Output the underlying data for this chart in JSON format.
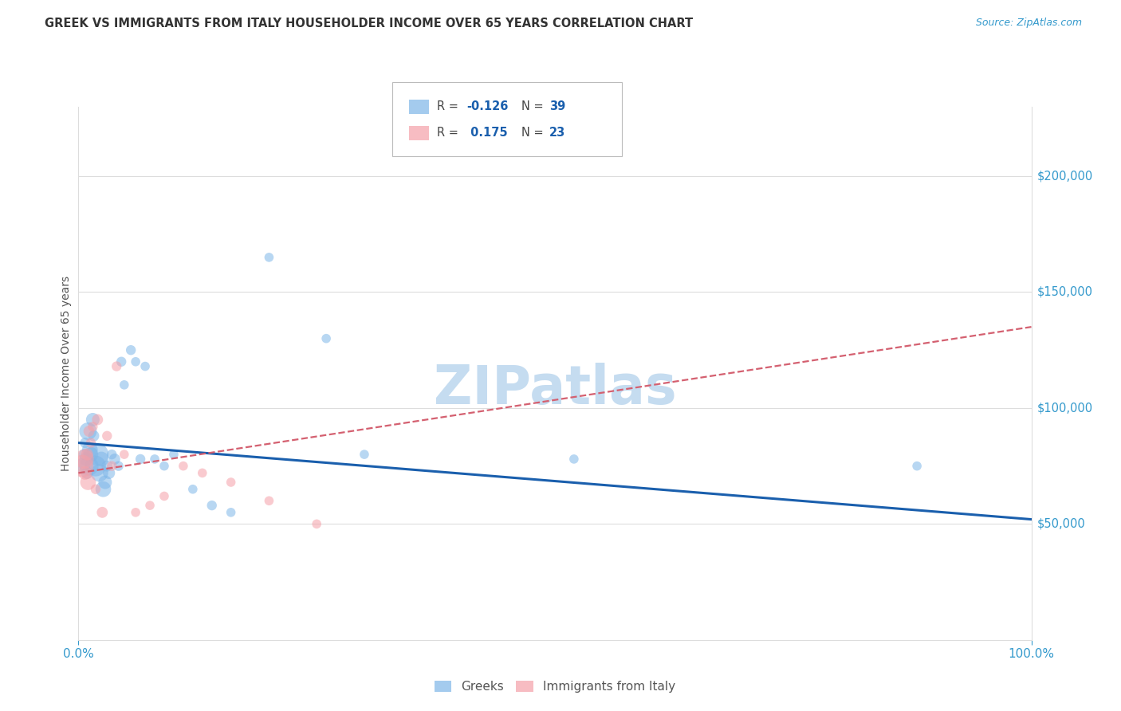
{
  "title": "GREEK VS IMMIGRANTS FROM ITALY HOUSEHOLDER INCOME OVER 65 YEARS CORRELATION CHART",
  "source": "Source: ZipAtlas.com",
  "ylabel": "Householder Income Over 65 years",
  "x_tick_labels": [
    "0.0%",
    "100.0%"
  ],
  "y_tick_values": [
    50000,
    100000,
    150000,
    200000
  ],
  "xlim": [
    0,
    1.0
  ],
  "ylim": [
    0,
    230000
  ],
  "legend_labels": [
    "Greeks",
    "Immigrants from Italy"
  ],
  "watermark": "ZIPatlas",
  "blue_color": "#7EB6E8",
  "pink_color": "#F5A0A8",
  "blue_line_color": "#1A5FAD",
  "pink_line_color": "#D46070",
  "title_color": "#333333",
  "axis_label_color": "#555555",
  "tick_color": "#3399CC",
  "watermark_color": "#C5DCF0",
  "background_color": "#FFFFFF",
  "grid_color": "#DDDDDD",
  "greeks_x": [
    0.004,
    0.006,
    0.007,
    0.008,
    0.009,
    0.01,
    0.011,
    0.012,
    0.013,
    0.015,
    0.016,
    0.018,
    0.02,
    0.022,
    0.024,
    0.026,
    0.028,
    0.03,
    0.032,
    0.035,
    0.038,
    0.042,
    0.045,
    0.048,
    0.055,
    0.06,
    0.065,
    0.07,
    0.08,
    0.09,
    0.1,
    0.12,
    0.14,
    0.16,
    0.2,
    0.26,
    0.3,
    0.52,
    0.88
  ],
  "greeks_y": [
    75000,
    80000,
    85000,
    78000,
    72000,
    90000,
    75000,
    82000,
    80000,
    95000,
    88000,
    75000,
    80000,
    72000,
    78000,
    65000,
    68000,
    75000,
    72000,
    80000,
    78000,
    75000,
    120000,
    110000,
    125000,
    120000,
    78000,
    118000,
    78000,
    75000,
    80000,
    65000,
    58000,
    55000,
    165000,
    130000,
    80000,
    78000,
    75000
  ],
  "greeks_size": [
    200,
    100,
    90,
    150,
    120,
    250,
    300,
    200,
    180,
    150,
    100,
    350,
    400,
    250,
    180,
    200,
    150,
    100,
    120,
    80,
    100,
    80,
    80,
    70,
    80,
    70,
    80,
    70,
    70,
    70,
    70,
    70,
    80,
    70,
    70,
    70,
    70,
    70,
    70
  ],
  "italy_x": [
    0.004,
    0.006,
    0.007,
    0.009,
    0.01,
    0.011,
    0.013,
    0.015,
    0.018,
    0.02,
    0.025,
    0.03,
    0.035,
    0.04,
    0.048,
    0.06,
    0.075,
    0.09,
    0.11,
    0.13,
    0.16,
    0.2,
    0.25
  ],
  "italy_y": [
    75000,
    78000,
    72000,
    80000,
    68000,
    90000,
    85000,
    92000,
    65000,
    95000,
    55000,
    88000,
    75000,
    118000,
    80000,
    55000,
    58000,
    62000,
    75000,
    72000,
    68000,
    60000,
    50000
  ],
  "italy_size": [
    400,
    300,
    150,
    120,
    200,
    100,
    80,
    80,
    80,
    100,
    100,
    80,
    80,
    80,
    70,
    70,
    70,
    70,
    70,
    70,
    70,
    70,
    70
  ],
  "greek_trendline": [
    0.0,
    1.0,
    85000,
    52000
  ],
  "italy_trendline": [
    0.0,
    1.0,
    72000,
    135000
  ]
}
